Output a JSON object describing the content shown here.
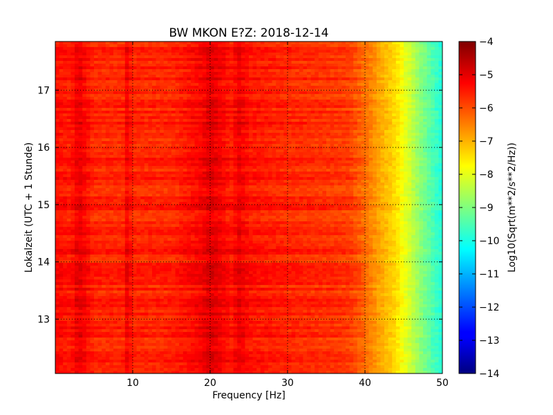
{
  "chart_data": {
    "type": "heatmap",
    "title": "BW MKON E?Z: 2018-12-14",
    "xlabel": "Frequency [Hz]",
    "ylabel": "Lokalzeit (UTC + 1 Stunde)",
    "colorbar_label": "Log10(Sqrt(m**2/s**2/Hz))",
    "xlim": [
      0,
      50
    ],
    "ylim": [
      17.85,
      12.05
    ],
    "clim": [
      -14,
      -4
    ],
    "x_ticks": [
      10,
      20,
      30,
      40,
      50
    ],
    "x_tick_labels": [
      "10",
      "20",
      "30",
      "40",
      "50"
    ],
    "y_ticks": [
      13,
      14,
      15,
      16,
      17
    ],
    "y_tick_labels": [
      "13",
      "14",
      "15",
      "16",
      "17"
    ],
    "colorbar_ticks": [
      -4,
      -5,
      -6,
      -7,
      -8,
      -9,
      -10,
      -11,
      -12,
      -13,
      -14
    ],
    "colorbar_tick_labels": [
      "−4",
      "−5",
      "−6",
      "−7",
      "−8",
      "−9",
      "−10",
      "−11",
      "−12",
      "−13",
      "−14"
    ],
    "colormap": "jet",
    "grid": "dotted",
    "spectral_profile": {
      "frequency": [
        0,
        2,
        3,
        5,
        9,
        9.3,
        10,
        15,
        19,
        20,
        21,
        23,
        23.5,
        25,
        30,
        35,
        38,
        40,
        42,
        44,
        45,
        46,
        47,
        48,
        49,
        50
      ],
      "level": [
        -5.3,
        -5.5,
        -5.0,
        -5.6,
        -5.6,
        -5.1,
        -5.6,
        -5.6,
        -5.2,
        -4.9,
        -5.1,
        -5.5,
        -5.0,
        -5.4,
        -5.6,
        -5.7,
        -5.8,
        -6.3,
        -6.9,
        -7.4,
        -7.9,
        -8.3,
        -8.8,
        -9.2,
        -9.6,
        -9.9
      ]
    },
    "events": [
      {
        "type": "tonal_line",
        "time": 14.2,
        "freq_range": [
          28,
          45
        ],
        "level": -4.2
      }
    ]
  }
}
